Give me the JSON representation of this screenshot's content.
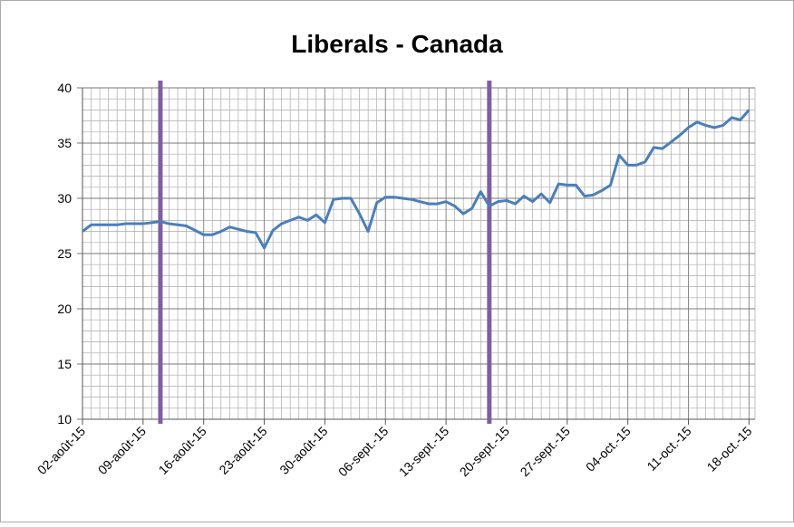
{
  "chart_data": {
    "type": "line",
    "title": "Liberals - Canada",
    "categories": [
      "02-août-15",
      null,
      null,
      null,
      null,
      null,
      null,
      "09-août-15",
      null,
      null,
      null,
      null,
      null,
      null,
      "16-août-15",
      null,
      null,
      null,
      null,
      null,
      null,
      "23-août-15",
      null,
      null,
      null,
      null,
      null,
      null,
      "30-août-15",
      null,
      null,
      null,
      null,
      null,
      null,
      "06-sept.-15",
      null,
      null,
      null,
      null,
      null,
      null,
      "13-sept.-15",
      null,
      null,
      null,
      null,
      null,
      null,
      "20-sept.-15",
      null,
      null,
      null,
      null,
      null,
      null,
      "27-sept.-15",
      null,
      null,
      null,
      null,
      null,
      null,
      "04-oct.-15",
      null,
      null,
      null,
      null,
      null,
      null,
      "11-oct.-15",
      null,
      null,
      null,
      null,
      null,
      null,
      "18-oct.-15"
    ],
    "series": [
      {
        "name": "Liberals",
        "color": "#4a7ebb",
        "values": [
          27.0,
          27.6,
          27.6,
          27.6,
          27.6,
          27.7,
          27.7,
          27.7,
          27.8,
          27.9,
          27.7,
          27.6,
          27.5,
          27.1,
          26.7,
          26.7,
          27.0,
          27.4,
          27.2,
          27.0,
          26.9,
          25.5,
          27.1,
          27.7,
          28.0,
          28.3,
          28.0,
          28.5,
          27.8,
          29.9,
          30.0,
          30.0,
          28.6,
          27.0,
          29.6,
          30.1,
          30.1,
          30.0,
          29.9,
          29.7,
          29.5,
          29.5,
          29.7,
          29.3,
          28.6,
          29.1,
          30.6,
          29.3,
          29.7,
          29.8,
          29.5,
          30.2,
          29.7,
          30.4,
          29.6,
          31.3,
          31.2,
          31.2,
          30.2,
          30.3,
          30.7,
          31.2,
          33.9,
          33.0,
          33.0,
          33.3,
          34.6,
          34.5,
          35.1,
          35.7,
          36.4,
          36.9,
          36.6,
          36.4,
          36.6,
          37.3,
          37.1,
          38.0
        ]
      }
    ],
    "ylim": [
      10,
      40
    ],
    "yticks": [
      10,
      15,
      20,
      25,
      30,
      35,
      40
    ],
    "grid": true,
    "reference_lines": {
      "positions": [
        9,
        47
      ],
      "color": "#7f5f9f"
    }
  }
}
